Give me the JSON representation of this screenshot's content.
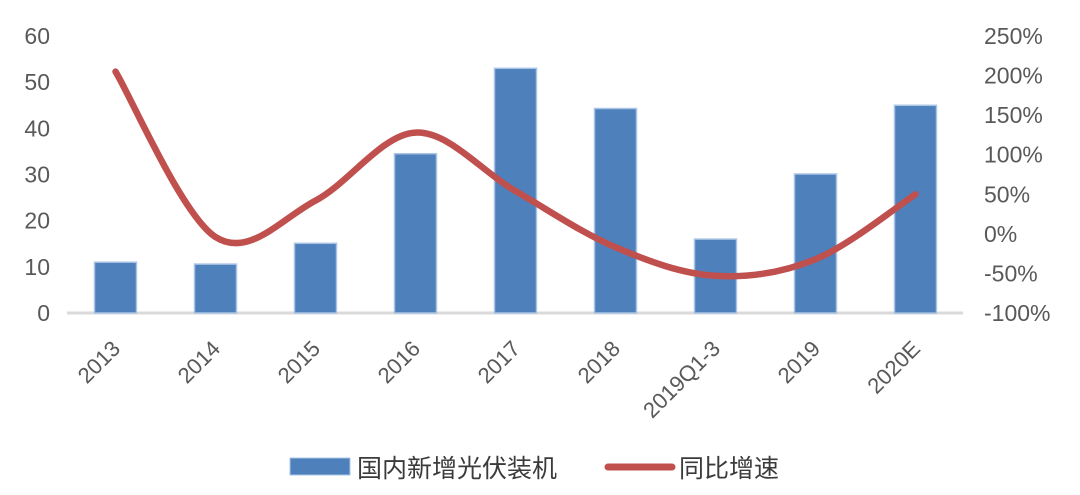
{
  "chart_data": {
    "type": "bar",
    "subtype": "combo-bar-line",
    "title": "",
    "categories": [
      "2013",
      "2014",
      "2015",
      "2016",
      "2017",
      "2018",
      "2019Q1-3",
      "2019",
      "2020E"
    ],
    "series": [
      {
        "name": "国内新增光伏装机",
        "chart_type": "bar",
        "axis": "left",
        "values": [
          11,
          10.6,
          15.1,
          34.5,
          53,
          44.3,
          16,
          30.1,
          45
        ]
      },
      {
        "name": "同比增速",
        "chart_type": "line",
        "axis": "right",
        "values": [
          205,
          -4,
          42,
          128,
          54,
          -17,
          -53,
          -32,
          50
        ]
      }
    ],
    "left_axis": {
      "min": 0,
      "max": 60,
      "step": 10,
      "labels": [
        "0",
        "10",
        "20",
        "30",
        "40",
        "50",
        "60"
      ]
    },
    "right_axis": {
      "min": -100,
      "max": 250,
      "step": 50,
      "labels": [
        "-100%",
        "-50%",
        "0%",
        "50%",
        "100%",
        "150%",
        "200%",
        "250%"
      ]
    },
    "x_axis": {
      "label_rotation_deg": -45
    },
    "grid": false,
    "legend_position": "bottom",
    "colors": {
      "bar_fill": "#4e80bc",
      "bar_border": "#a9c4e4",
      "line": "#c0504d",
      "tick_text": "#595959",
      "axis_line": "#d9d9d9",
      "legend_text": "#3b3b3b"
    }
  }
}
